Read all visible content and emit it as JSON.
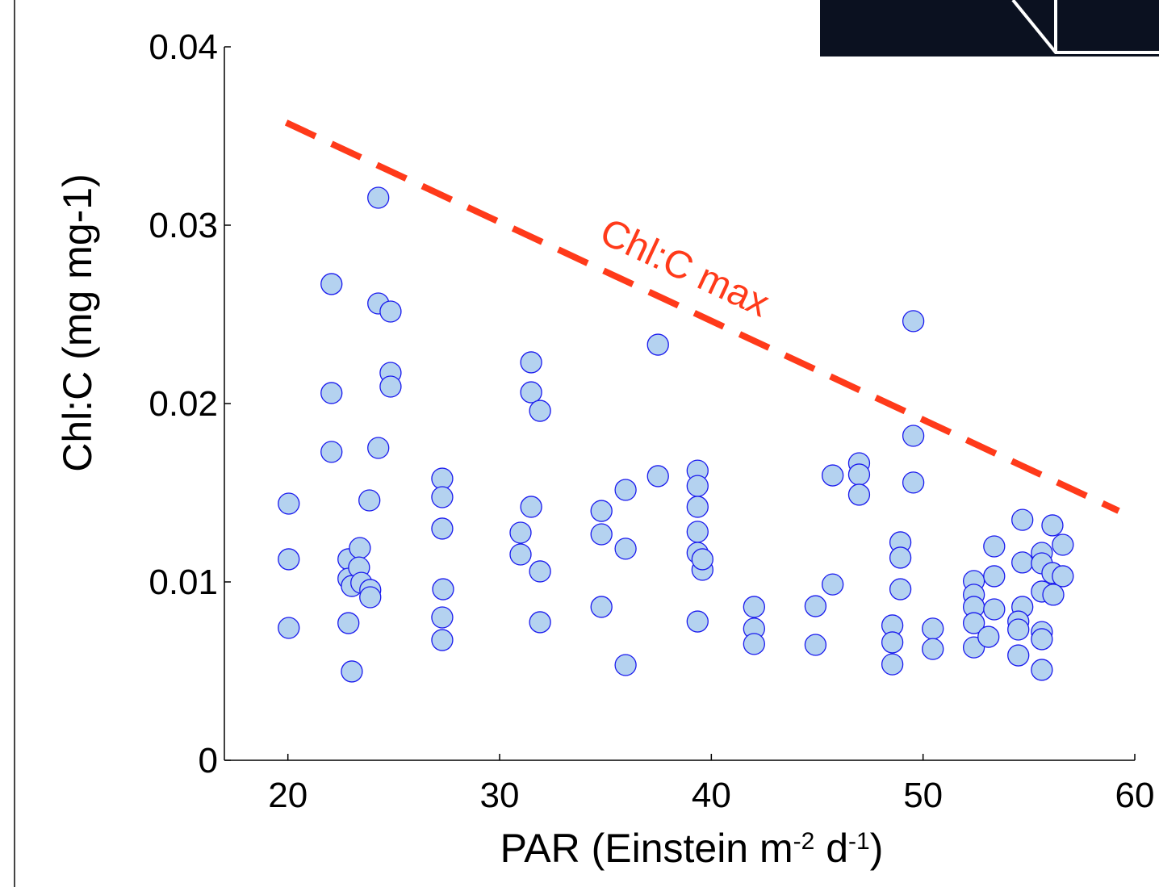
{
  "chart_data": {
    "type": "scatter",
    "ylabel": "Chl:C (mg mg-1)",
    "xlabel": [
      {
        "text": "PAR (Einstein m"
      },
      {
        "text": "-2",
        "sup": true
      },
      {
        "text": " d"
      },
      {
        "text": "-1",
        "sup": true
      },
      {
        "text": ")"
      }
    ],
    "xlim": [
      17,
      60
    ],
    "ylim": [
      0,
      0.04
    ],
    "xticks": [
      20,
      30,
      40,
      50,
      60
    ],
    "yticks": [
      0,
      0.01,
      0.02,
      0.03,
      0.04
    ],
    "series": [
      {
        "color": "#b4d2f0",
        "edgecolor": "#1a1aee",
        "x": [
          20.04,
          20.04,
          20.04,
          24.27,
          22.06,
          24.27,
          24.85,
          22.06,
          24.85,
          24.85,
          22.06,
          24.27,
          23.85,
          22.86,
          23.4,
          22.86,
          23.36,
          23.02,
          23.47,
          23.89,
          23.89,
          22.86,
          23.02,
          27.29,
          27.29,
          27.29,
          27.33,
          27.29,
          27.29,
          31.49,
          31.49,
          31.91,
          31.49,
          30.99,
          30.99,
          31.91,
          31.91,
          37.48,
          37.48,
          35.95,
          34.81,
          34.81,
          35.95,
          34.81,
          35.95,
          39.35,
          39.35,
          39.35,
          39.35,
          39.35,
          39.58,
          39.58,
          39.35,
          42.02,
          42.02,
          42.02,
          44.92,
          44.92,
          45.73,
          45.73,
          46.98,
          46.98,
          46.98,
          49.54,
          49.54,
          49.54,
          48.93,
          48.93,
          48.93,
          48.55,
          48.55,
          48.55,
          50.46,
          50.46,
          52.4,
          52.4,
          52.4,
          52.4,
          52.4,
          53.36,
          53.36,
          53.36,
          53.09,
          54.69,
          54.69,
          54.69,
          54.5,
          54.5,
          54.5,
          55.61,
          55.61,
          55.61,
          55.61,
          55.61,
          55.61,
          56.11,
          56.6,
          56.11,
          56.6,
          56.15
        ],
        "y": [
          0.01439,
          0.01127,
          0.00742,
          0.03154,
          0.0267,
          0.02561,
          0.02516,
          0.02059,
          0.02172,
          0.02095,
          0.01729,
          0.01751,
          0.01457,
          0.01127,
          0.0119,
          0.01018,
          0.01081,
          0.00977,
          0.00995,
          0.00955,
          0.00914,
          0.00769,
          0.00498,
          0.01579,
          0.01475,
          0.01299,
          0.00959,
          0.00801,
          0.00674,
          0.02231,
          0.02063,
          0.01959,
          0.01421,
          0.01276,
          0.01154,
          0.01059,
          0.00774,
          0.0233,
          0.01593,
          0.01516,
          0.01398,
          0.01267,
          0.01186,
          0.0086,
          0.00534,
          0.01624,
          0.01538,
          0.01421,
          0.01281,
          0.01163,
          0.01068,
          0.01127,
          0.00778,
          0.0086,
          0.00738,
          0.00652,
          0.00864,
          0.00647,
          0.01597,
          0.00986,
          0.01665,
          0.01602,
          0.01489,
          0.02462,
          0.01819,
          0.01557,
          0.01222,
          0.01136,
          0.00959,
          0.00756,
          0.00661,
          0.00538,
          0.00738,
          0.00624,
          0.01005,
          0.00928,
          0.0086,
          0.00769,
          0.00633,
          0.01199,
          0.01032,
          0.00846,
          0.00692,
          0.01348,
          0.01109,
          0.0086,
          0.00778,
          0.00733,
          0.00588,
          0.01163,
          0.01104,
          0.00946,
          0.00719,
          0.00679,
          0.00507,
          0.01317,
          0.01208,
          0.0105,
          0.01032,
          0.00928
        ]
      }
    ],
    "max_line": {
      "label": "Chl:C max",
      "color": "#ff3a1a",
      "x": [
        19.92,
        59.24
      ],
      "y": [
        0.03575,
        0.01398
      ]
    }
  }
}
